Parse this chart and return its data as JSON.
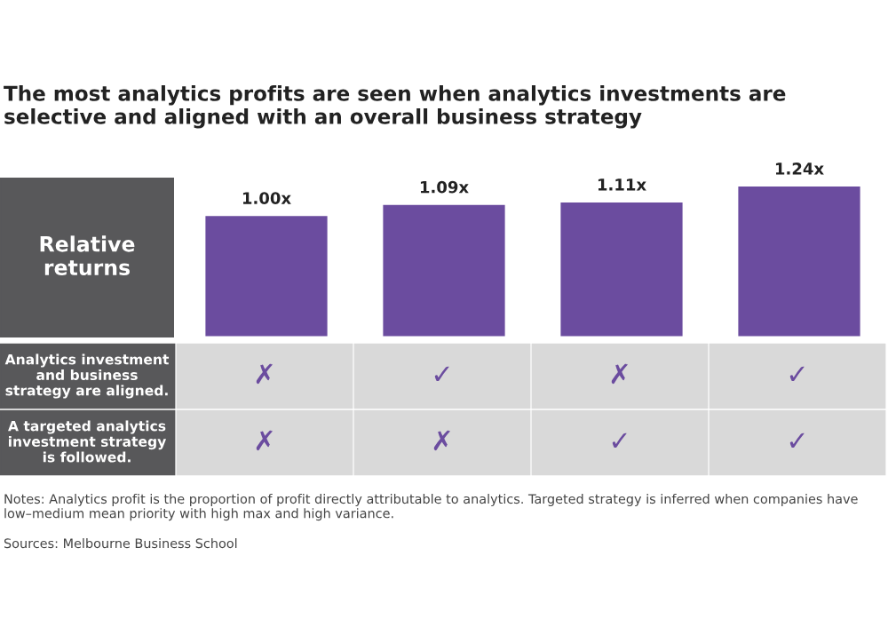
{
  "chart_data": {
    "type": "bar",
    "title": "The most analytics profits are seen when analytics investments are selective and aligned with an overall business strategy",
    "ylabel": "Relative returns",
    "categories": [
      null,
      null,
      null,
      null
    ],
    "values": [
      1.0,
      1.09,
      1.11,
      1.24
    ],
    "color": "#6b4c9f",
    "data_labels": true,
    "value_labels": [
      "1.00x",
      "1.09x",
      "1.11x",
      "1.24x"
    ],
    "tick_labels": false,
    "grid": false,
    "annotations": [
      "Notes: Analytics profit is the proportion of profit directly attributable to analytics. Targeted strategy is inferred when companies have low–medium mean priority with high max and high variance.",
      "Sources: Melbourne Business School",
      "Analytics investment and business strategy are aligned.",
      "A targeted analytics investment strategy is followed.",
      "✗",
      "✓",
      "✗",
      "✓",
      "✗",
      "✗",
      "✓",
      "✓"
    ]
  }
}
